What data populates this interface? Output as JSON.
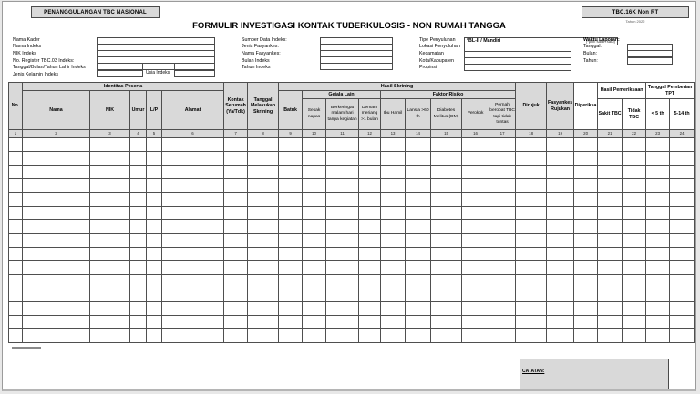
{
  "header": {
    "program_box": "PENANGGULANGAN TBC NASIONAL",
    "form_code": "TBC.16K Non RT",
    "form_code_note": "Tahun 2022",
    "title": "FORMULIR INVESTIGASI KONTAK TUBERKULOSIS - NON RUMAH TANGGA"
  },
  "form": {
    "left": {
      "labels": [
        "Nama Kader",
        "Nama Indeks",
        "NIK Indeks",
        "No. Register TBC.03 Indeks:",
        "Tanggal/Bulan/Tahun Lahir Indeks",
        "Jenis Kelamin Indeks"
      ],
      "usia_label": "Usia Indeks"
    },
    "middle": {
      "labels": [
        "Sumber Data Indeks:",
        "Jenis Fasyankes:",
        "Nama Fasyankes:",
        "Bulan Indeks",
        "Tahun Indeks"
      ]
    },
    "right": {
      "labels": [
        "Tipe Penyuluhan",
        "Lokasi Penyuluhan",
        "Kecamatan",
        "Kota/Kabupaten",
        "Propinsi"
      ],
      "tipe_value": "*BL-II / Mandiri",
      "tipe_note": "(*pilih salah satu)"
    },
    "waktu": {
      "title": "Waktu Laporan:",
      "labels": [
        "Tanggal:",
        "Bulan:",
        "Tahun:"
      ]
    }
  },
  "table": {
    "groups": {
      "identitas": "Identitas Peserta",
      "hasil_skrining": "Hasil Skrining",
      "gejala_lain": "Gejala Lain",
      "faktor_risiko": "Faktor Risiko",
      "hasil_pemeriksaan": "Hasil Pemeriksaan",
      "tpt": "Tanggal Pemberian TPT"
    },
    "cols": {
      "no": "No.",
      "nama": "Nama",
      "nik": "NIK",
      "umur": "Umur",
      "lp": "L/P",
      "alamat": "Alamat",
      "kontak": "Kontak Serumah (Ya/Tdk)",
      "tgl_skrining": "Tanggal Melakukan Skrining",
      "batuk": "Batuk",
      "sesak": "Sesak napas",
      "berkeringat": "Berkeringat malam hari tanpa kegiatan",
      "demam": "Demam meriang >1 bulan",
      "ibu_hamil": "Ibu Hamil",
      "lansia": "Lansia >60 th",
      "dm": "Diabetes Melitus (DM)",
      "perokok": "Perokok",
      "pernah_berobat": "Pernah berobat TBC tapi tidak tuntas",
      "dirujuk": "Dirujuk",
      "fasyankes_rujukan": "Fasyankes Rujukan",
      "diperiksa": "Diperiksa",
      "sakit_tbc": "Sakit TBC",
      "tidak_tbc": "Tidak TBC",
      "tpt_lt5": "< 5 th",
      "tpt_5_14": "5-14 th"
    },
    "numbers": [
      "1",
      "2",
      "3",
      "4",
      "5",
      "6",
      "7",
      "8",
      "9",
      "10",
      "11",
      "12",
      "13",
      "14",
      "15",
      "16",
      "17",
      "18",
      "19",
      "20",
      "21",
      "22",
      "23",
      "24"
    ],
    "body_row_count": 15
  },
  "footer": {
    "catatan_label": "CATATAN:"
  }
}
